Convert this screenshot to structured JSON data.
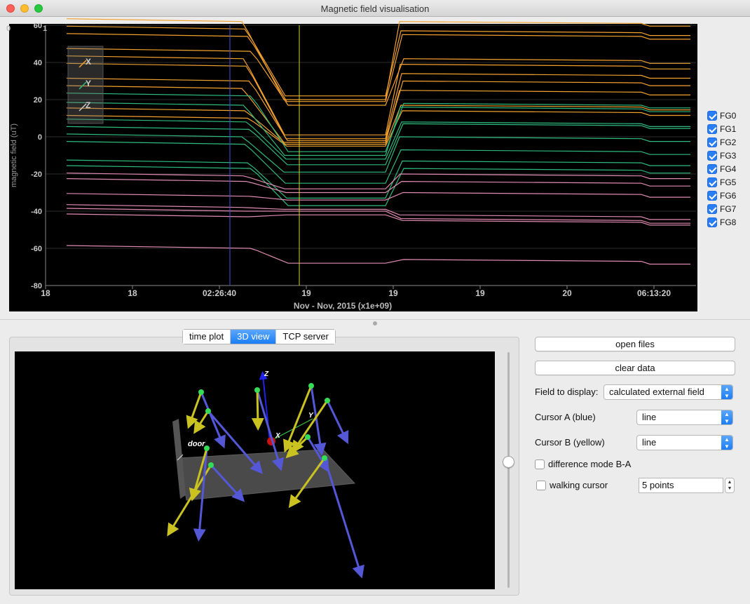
{
  "window": {
    "title": "Magnetic field visualisation"
  },
  "chart_data": {
    "type": "line",
    "title": "",
    "ylabel": "magnetic field (uT)",
    "xlabel": "Nov - Nov, 2015 (x1e+09)",
    "ylim": [
      -80,
      60
    ],
    "yticks": [
      "60",
      "40",
      "20",
      "0",
      "-20",
      "-40",
      "-60",
      "-80"
    ],
    "xticks": [
      "18",
      "18",
      "02:26:40",
      "19",
      "19",
      "19",
      "20",
      "06:13:20"
    ],
    "corner_labels": [
      "0",
      "1"
    ],
    "axis_legend": [
      "X",
      "Y",
      "Z"
    ],
    "series_colors": {
      "X": "#f2a12e",
      "Y": "#2fba7e",
      "Z": "#e08ab2"
    },
    "cursor_a_color": "#4a55d8",
    "cursor_b_color": "#d9d22a",
    "series": [
      {
        "axis": "X",
        "levels": [
          62,
          20,
          61
        ]
      },
      {
        "axis": "X",
        "levels": [
          58,
          22,
          56
        ]
      },
      {
        "axis": "X",
        "levels": [
          54,
          19,
          54
        ]
      },
      {
        "axis": "X",
        "levels": [
          46,
          17,
          41
        ]
      },
      {
        "axis": "X",
        "levels": [
          42,
          1,
          38
        ]
      },
      {
        "axis": "X",
        "levels": [
          38,
          -1,
          33
        ]
      },
      {
        "axis": "X",
        "levels": [
          30,
          -2,
          29
        ]
      },
      {
        "axis": "X",
        "levels": [
          26,
          -3,
          24
        ]
      },
      {
        "axis": "X",
        "levels": [
          14,
          -4,
          16
        ]
      },
      {
        "axis": "X",
        "levels": [
          10,
          -5,
          13
        ]
      },
      {
        "axis": "Y",
        "levels": [
          22,
          -8,
          17
        ]
      },
      {
        "axis": "Y",
        "levels": [
          17,
          -10,
          15
        ]
      },
      {
        "axis": "Y",
        "levels": [
          8,
          -12,
          7
        ]
      },
      {
        "axis": "Y",
        "levels": [
          4,
          -15,
          6
        ]
      },
      {
        "axis": "Y",
        "levels": [
          0,
          -19,
          -1
        ]
      },
      {
        "axis": "Y",
        "levels": [
          -4,
          -25,
          -8
        ]
      },
      {
        "axis": "Y",
        "levels": [
          -14,
          -33,
          -14
        ]
      },
      {
        "axis": "Y",
        "levels": [
          -17,
          -37,
          -18
        ]
      },
      {
        "axis": "Z",
        "levels": [
          -21,
          -28,
          -21
        ]
      },
      {
        "axis": "Z",
        "levels": [
          -24,
          -30,
          -25
        ]
      },
      {
        "axis": "Z",
        "levels": [
          -32,
          -34,
          -31
        ]
      },
      {
        "axis": "Z",
        "levels": [
          -38,
          -39,
          -43
        ]
      },
      {
        "axis": "Z",
        "levels": [
          -40,
          -40,
          -45
        ]
      },
      {
        "axis": "Z",
        "levels": [
          -43,
          -42,
          -46
        ]
      },
      {
        "axis": "Z",
        "levels": [
          -60,
          -68,
          -67
        ]
      }
    ]
  },
  "legend": {
    "items": [
      "FG0",
      "FG1",
      "FG2",
      "FG3",
      "FG4",
      "FG5",
      "FG6",
      "FG7",
      "FG8"
    ]
  },
  "tabs": [
    {
      "label": "time plot",
      "active": false
    },
    {
      "label": "3D view",
      "active": true
    },
    {
      "label": "TCP server",
      "active": false
    }
  ],
  "view3d": {
    "axis_labels": {
      "x": "X",
      "y": "Y",
      "z": "Z"
    },
    "door_label": "door",
    "colors": {
      "blue_arrow": "#5558d6",
      "yellow_arrow": "#c9c220",
      "sensor": "#33dd55"
    }
  },
  "controls": {
    "open_files": "open files",
    "clear_data": "clear data",
    "field_to_display_label": "Field to display:",
    "field_to_display_value": "calculated external field",
    "cursor_a_label": "Cursor A (blue)",
    "cursor_a_value": "line",
    "cursor_b_label": "Cursor B (yellow)",
    "cursor_b_value": "line",
    "difference_mode_label": "difference mode B-A",
    "walking_cursor_label": "walking cursor",
    "walking_points_value": "5 points"
  }
}
